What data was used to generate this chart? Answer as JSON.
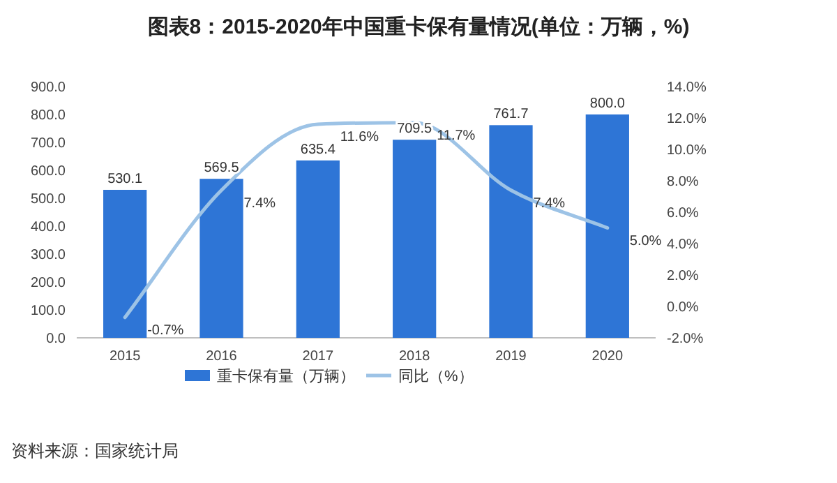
{
  "chart_data": {
    "type": "bar",
    "title": "图表8：2015-2020年中国重卡保有量情况(单位：万辆，%)",
    "categories": [
      "2015",
      "2016",
      "2017",
      "2018",
      "2019",
      "2020"
    ],
    "series": [
      {
        "name": "重卡保有量（万辆）",
        "color": "#2e75d6",
        "values": [
          530.1,
          569.5,
          635.4,
          709.5,
          761.7,
          800.0
        ],
        "value_labels": [
          "530.1",
          "569.5",
          "635.4",
          "709.5",
          "761.7",
          "800.0"
        ]
      },
      {
        "name": "同比（%）",
        "type": "line",
        "axis": "y2",
        "color": "#9dc3e6",
        "values": [
          -0.7,
          7.4,
          11.6,
          11.7,
          7.4,
          5.0
        ],
        "value_labels": [
          "-0.7%",
          "7.4%",
          "11.6%",
          "11.7%",
          "7.4%",
          "5.0%"
        ]
      }
    ],
    "ylim": [
      0,
      900
    ],
    "yticks": [
      {
        "value": 0,
        "label": "0.0"
      },
      {
        "value": 100,
        "label": "100.0"
      },
      {
        "value": 200,
        "label": "200.0"
      },
      {
        "value": 300,
        "label": "300.0"
      },
      {
        "value": 400,
        "label": "400.0"
      },
      {
        "value": 500,
        "label": "500.0"
      },
      {
        "value": 600,
        "label": "600.0"
      },
      {
        "value": 700,
        "label": "700.0"
      },
      {
        "value": 800,
        "label": "800.0"
      },
      {
        "value": 900,
        "label": "900.0"
      }
    ],
    "y2lim": [
      -2,
      14
    ],
    "y2ticks": [
      {
        "value": -2,
        "label": "-2.0%"
      },
      {
        "value": 0,
        "label": "0.0%"
      },
      {
        "value": 2,
        "label": "2.0%"
      },
      {
        "value": 4,
        "label": "4.0%"
      },
      {
        "value": 6,
        "label": "6.0%"
      },
      {
        "value": 8,
        "label": "8.0%"
      },
      {
        "value": 10,
        "label": "10.0%"
      },
      {
        "value": 12,
        "label": "12.0%"
      },
      {
        "value": 14,
        "label": "14.0%"
      }
    ],
    "legend": "bottom",
    "annotations": [
      "资料来源：国家统计局"
    ]
  }
}
